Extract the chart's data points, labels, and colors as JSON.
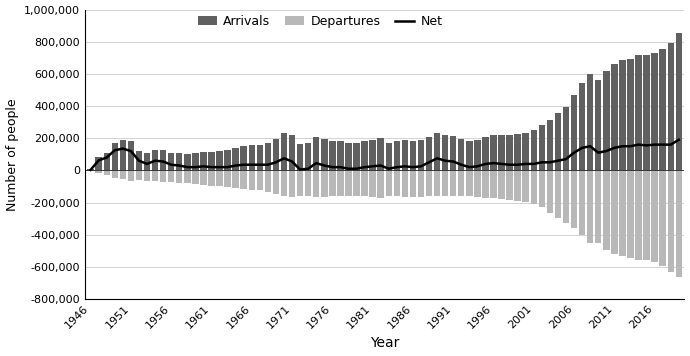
{
  "years": [
    1946,
    1947,
    1948,
    1949,
    1950,
    1951,
    1952,
    1953,
    1954,
    1955,
    1956,
    1957,
    1958,
    1959,
    1960,
    1961,
    1962,
    1963,
    1964,
    1965,
    1966,
    1967,
    1968,
    1969,
    1970,
    1971,
    1972,
    1973,
    1974,
    1975,
    1976,
    1977,
    1978,
    1979,
    1980,
    1981,
    1982,
    1983,
    1984,
    1985,
    1986,
    1987,
    1988,
    1989,
    1990,
    1991,
    1992,
    1993,
    1994,
    1995,
    1996,
    1997,
    1998,
    1999,
    2000,
    2001,
    2002,
    2003,
    2004,
    2005,
    2006,
    2007,
    2008,
    2009,
    2010,
    2011,
    2012,
    2013,
    2014,
    2015,
    2016,
    2017,
    2018,
    2019
  ],
  "arrivals": [
    8000,
    80000,
    110000,
    170000,
    190000,
    185000,
    120000,
    105000,
    125000,
    125000,
    110000,
    110000,
    100000,
    105000,
    115000,
    115000,
    120000,
    125000,
    140000,
    150000,
    155000,
    160000,
    170000,
    195000,
    235000,
    220000,
    165000,
    170000,
    210000,
    195000,
    180000,
    180000,
    170000,
    170000,
    180000,
    190000,
    200000,
    170000,
    180000,
    190000,
    185000,
    190000,
    210000,
    235000,
    220000,
    215000,
    195000,
    180000,
    190000,
    210000,
    220000,
    220000,
    220000,
    225000,
    235000,
    250000,
    280000,
    315000,
    355000,
    395000,
    470000,
    545000,
    600000,
    560000,
    615000,
    660000,
    685000,
    695000,
    715000,
    715000,
    730000,
    755000,
    795000,
    855000
  ],
  "departures": [
    -5000,
    -18000,
    -30000,
    -45000,
    -55000,
    -65000,
    -60000,
    -65000,
    -65000,
    -70000,
    -75000,
    -80000,
    -80000,
    -85000,
    -90000,
    -95000,
    -100000,
    -105000,
    -110000,
    -115000,
    -120000,
    -125000,
    -135000,
    -145000,
    -160000,
    -165000,
    -160000,
    -160000,
    -165000,
    -165000,
    -160000,
    -160000,
    -160000,
    -160000,
    -160000,
    -165000,
    -170000,
    -160000,
    -160000,
    -165000,
    -165000,
    -165000,
    -160000,
    -160000,
    -160000,
    -160000,
    -160000,
    -160000,
    -165000,
    -170000,
    -175000,
    -180000,
    -185000,
    -190000,
    -195000,
    -210000,
    -230000,
    -265000,
    -295000,
    -325000,
    -360000,
    -405000,
    -450000,
    -450000,
    -495000,
    -520000,
    -535000,
    -545000,
    -555000,
    -560000,
    -570000,
    -595000,
    -635000,
    -665000
  ],
  "net": [
    3000,
    62000,
    80000,
    125000,
    135000,
    120000,
    60000,
    40000,
    60000,
    55000,
    35000,
    30000,
    20000,
    20000,
    25000,
    20000,
    20000,
    20000,
    30000,
    35000,
    35000,
    35000,
    35000,
    50000,
    75000,
    55000,
    5000,
    10000,
    45000,
    30000,
    20000,
    20000,
    10000,
    10000,
    20000,
    25000,
    30000,
    10000,
    20000,
    25000,
    20000,
    25000,
    50000,
    75000,
    60000,
    55000,
    35000,
    20000,
    25000,
    40000,
    45000,
    40000,
    35000,
    35000,
    40000,
    40000,
    50000,
    50000,
    60000,
    70000,
    110000,
    140000,
    150000,
    110000,
    120000,
    140000,
    150000,
    150000,
    160000,
    155000,
    160000,
    160000,
    160000,
    190000
  ],
  "arrivals_color": "#606060",
  "departures_color": "#b8b8b8",
  "net_color": "#000000",
  "ylabel": "Number of people",
  "xlabel": "Year",
  "ylim": [
    -800000,
    1000000
  ],
  "yticks": [
    -800000,
    -600000,
    -400000,
    -200000,
    0,
    200000,
    400000,
    600000,
    800000,
    1000000
  ],
  "xtick_labels": [
    "1946",
    "1951",
    "1956",
    "1961",
    "1966",
    "1971",
    "1976",
    "1981",
    "1986",
    "1991",
    "1996",
    "2001",
    "2006",
    "2011",
    "2016"
  ],
  "xtick_years": [
    1946,
    1951,
    1956,
    1961,
    1966,
    1971,
    1976,
    1981,
    1986,
    1991,
    1996,
    2001,
    2006,
    2011,
    2016
  ],
  "legend_arrivals": "Arrivals",
  "legend_departures": "Departures",
  "legend_net": "Net",
  "bar_width": 0.8
}
